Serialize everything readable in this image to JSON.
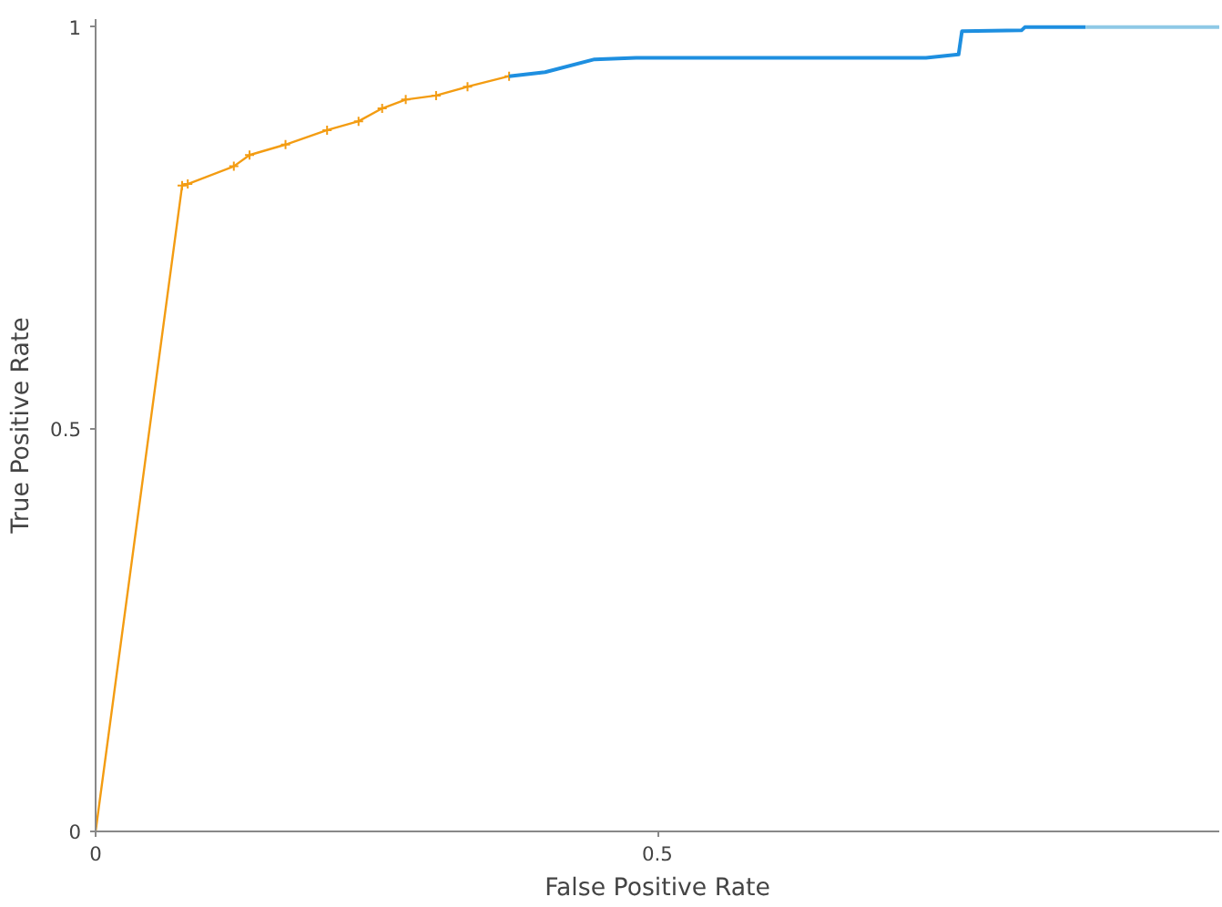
{
  "chart_data": {
    "type": "line",
    "xlabel": "False Positive Rate",
    "ylabel": "True Positive Rate",
    "xlim": [
      0,
      1
    ],
    "ylim": [
      0,
      1.01
    ],
    "xticks": [
      0,
      0.5
    ],
    "yticks": [
      0,
      0.5,
      1
    ],
    "grid": false,
    "series": [
      {
        "color": "#f39c12",
        "marker": "cross",
        "x": [
          0,
          0.077,
          0.082,
          0.123,
          0.137,
          0.169,
          0.206,
          0.234,
          0.255,
          0.276,
          0.303,
          0.331,
          0.368
        ],
        "values": [
          0,
          0.803,
          0.805,
          0.827,
          0.841,
          0.854,
          0.872,
          0.883,
          0.899,
          0.91,
          0.915,
          0.926,
          0.939
        ]
      },
      {
        "color": "#1e8fe0",
        "x": [
          0.368,
          0.4,
          0.444,
          0.481,
          0.739,
          0.768,
          0.771,
          0.824,
          0.827,
          0.881
        ],
        "values": [
          0.939,
          0.944,
          0.96,
          0.962,
          0.962,
          0.966,
          0.995,
          0.996,
          1.0,
          1.0
        ]
      },
      {
        "color": "#8ec9e6",
        "x": [
          0.881,
          1.0
        ],
        "values": [
          1.0,
          1.0
        ]
      }
    ]
  }
}
